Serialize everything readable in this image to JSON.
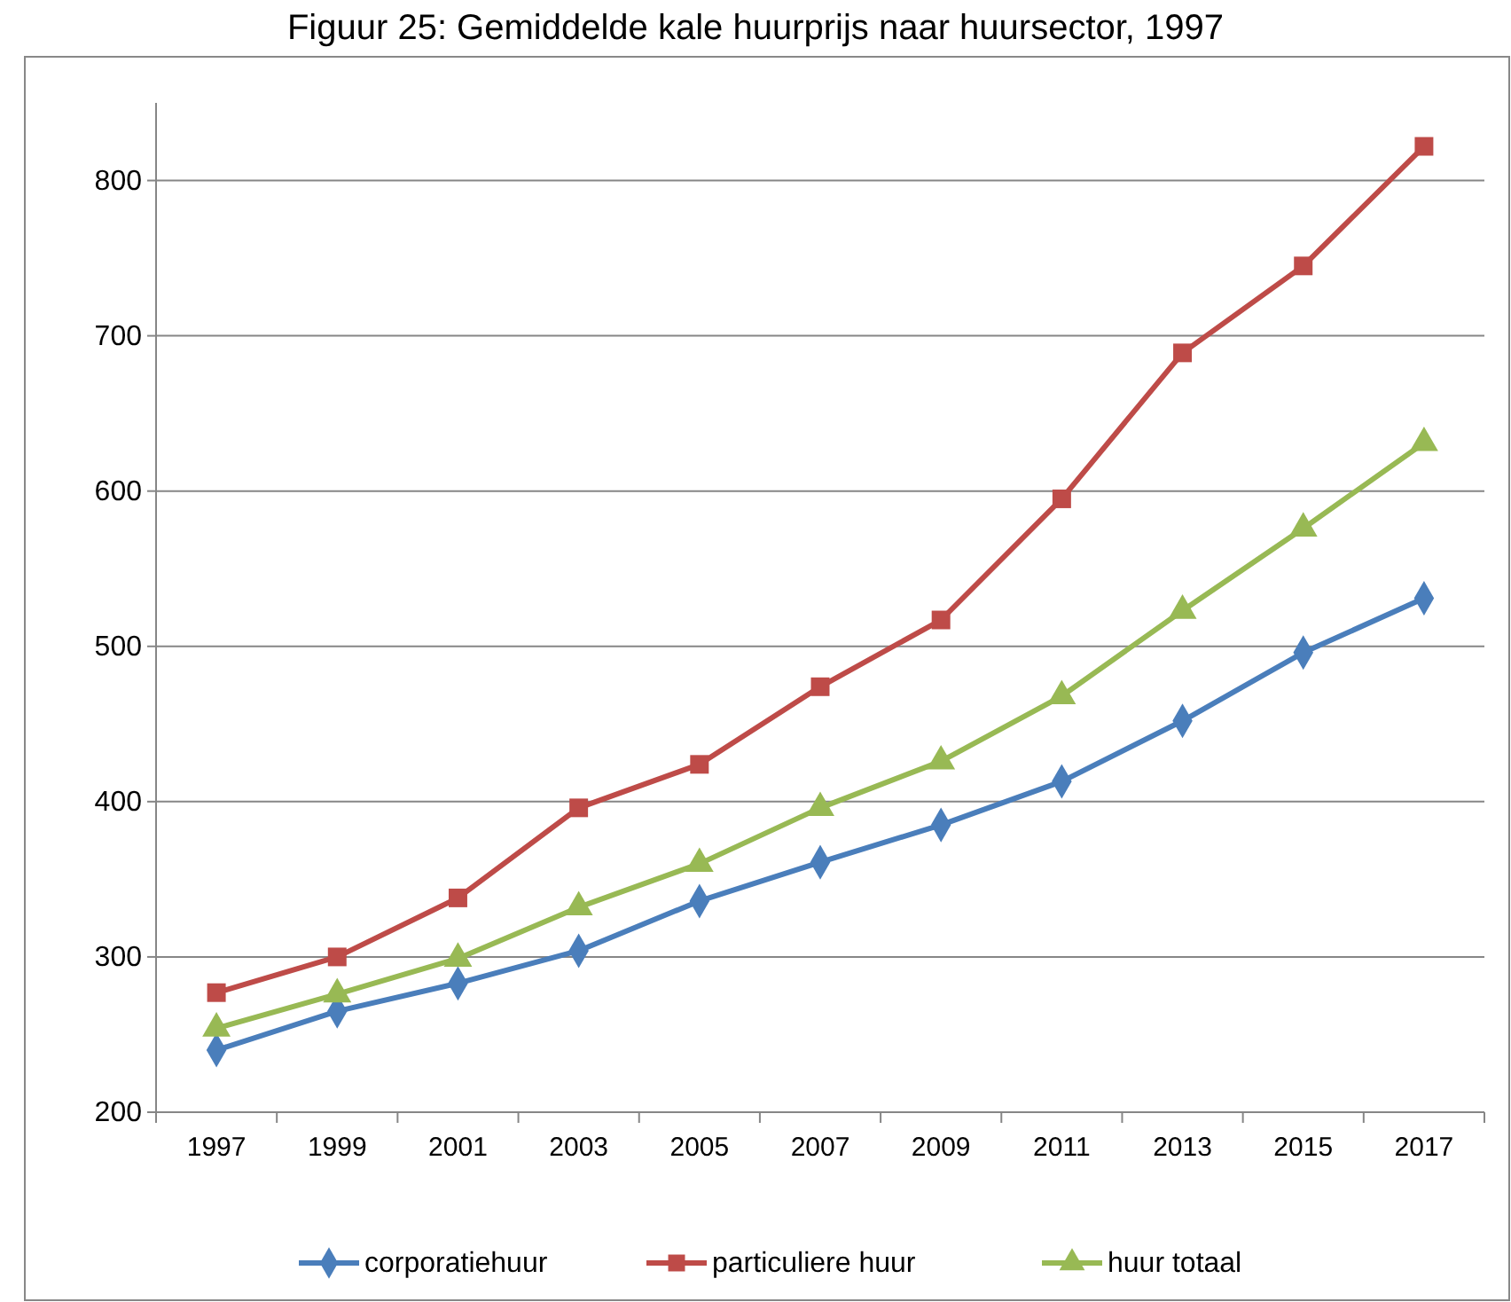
{
  "chart_data": {
    "type": "line",
    "title": "Figuur 25: Gemiddelde kale huurprijs naar huursector, 1997",
    "categories": [
      "1997",
      "1999",
      "2001",
      "2003",
      "2005",
      "2007",
      "2009",
      "2011",
      "2013",
      "2015",
      "2017"
    ],
    "series": [
      {
        "name": "corporatiehuur",
        "color": "#4a7ebb",
        "marker": "diamond",
        "values": [
          240,
          265,
          283,
          304,
          336,
          361,
          385,
          413,
          452,
          496,
          531
        ]
      },
      {
        "name": "particuliere huur",
        "color": "#be4b48",
        "marker": "square",
        "values": [
          277,
          300,
          338,
          396,
          424,
          474,
          517,
          595,
          689,
          745,
          822
        ]
      },
      {
        "name": "huur totaal",
        "color": "#98b954",
        "marker": "triangle",
        "values": [
          254,
          276,
          299,
          332,
          360,
          396,
          426,
          468,
          523,
          576,
          631
        ]
      }
    ],
    "ylim": [
      200,
      850
    ],
    "yticks": [
      200,
      300,
      400,
      500,
      600,
      700,
      800
    ],
    "grid": "y",
    "legend": "bottom",
    "line_style": "solid"
  }
}
